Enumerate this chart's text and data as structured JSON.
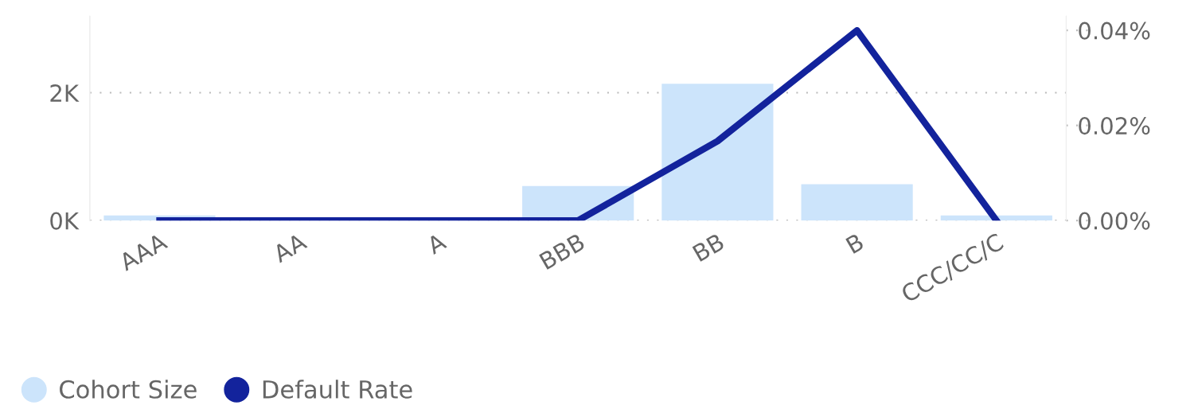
{
  "chart_data": {
    "type": "bar",
    "categories": [
      "AAA",
      "AA",
      "A",
      "BBB",
      "BB",
      "B",
      "CCC/CC/C"
    ],
    "series": [
      {
        "name": "Cohort Size",
        "color": "#cce4fb",
        "values": [
          80,
          0,
          0,
          540,
          2140,
          570,
          80
        ]
      },
      {
        "name": "Default Rate",
        "type": "line",
        "axis": "y2",
        "color": "#13239c",
        "values": [
          0,
          0,
          0,
          0,
          0.0167,
          0.04,
          0
        ]
      }
    ],
    "ylim": [
      0,
      3200
    ],
    "yticks": [
      {
        "value": 0,
        "label": "0K"
      },
      {
        "value": 2000,
        "label": "2K"
      }
    ],
    "y2lim": [
      0,
      0.043
    ],
    "y2ticks": [
      {
        "value": 0,
        "label": "0.00%"
      },
      {
        "value": 0.02,
        "label": "0.02%"
      },
      {
        "value": 0.04,
        "label": "0.04%"
      }
    ],
    "grid": "y",
    "legend": "bottom left",
    "marker": "none",
    "line_style": "solid"
  }
}
